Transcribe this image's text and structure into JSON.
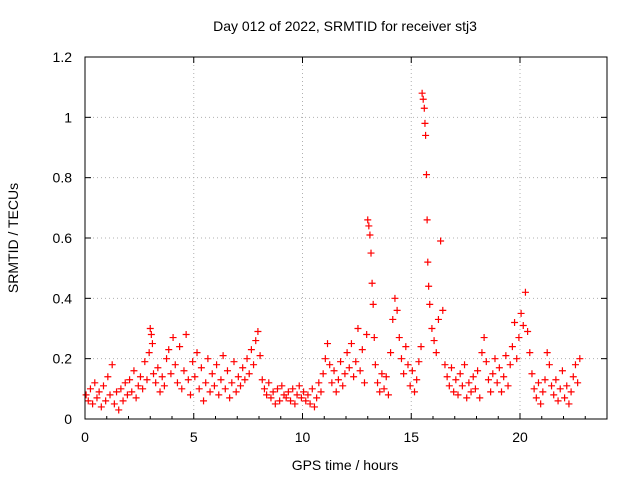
{
  "chart_data": {
    "type": "scatter",
    "title": "Day 012 of 2022, SRMTID for receiver stj3",
    "xlabel": "GPS time / hours",
    "ylabel": "SRMTID / TECUs",
    "xlim": [
      0,
      24
    ],
    "ylim": [
      0,
      1.2
    ],
    "xticks": [
      0,
      5,
      10,
      15,
      20
    ],
    "xtick_labels": [
      "0",
      "5",
      "10",
      "15",
      "20"
    ],
    "yticks": [
      0,
      0.2,
      0.4,
      0.6,
      0.8,
      1,
      1.2
    ],
    "ytick_labels": [
      "0",
      "0.2",
      "0.4",
      "0.6",
      "0.8",
      "1",
      "1.2"
    ],
    "grid": true,
    "marker": "+",
    "color": "#ff0000",
    "series": [
      {
        "name": "stj3",
        "points": [
          [
            0.05,
            0.08
          ],
          [
            0.15,
            0.06
          ],
          [
            0.25,
            0.1
          ],
          [
            0.35,
            0.05
          ],
          [
            0.45,
            0.12
          ],
          [
            0.55,
            0.07
          ],
          [
            0.65,
            0.09
          ],
          [
            0.75,
            0.04
          ],
          [
            0.85,
            0.11
          ],
          [
            0.95,
            0.06
          ],
          [
            1.05,
            0.14
          ],
          [
            1.15,
            0.08
          ],
          [
            1.25,
            0.18
          ],
          [
            1.35,
            0.05
          ],
          [
            1.45,
            0.09
          ],
          [
            1.55,
            0.03
          ],
          [
            1.65,
            0.1
          ],
          [
            1.75,
            0.06
          ],
          [
            1.85,
            0.12
          ],
          [
            1.95,
            0.08
          ],
          [
            2.05,
            0.13
          ],
          [
            2.15,
            0.09
          ],
          [
            2.25,
            0.16
          ],
          [
            2.35,
            0.07
          ],
          [
            2.45,
            0.11
          ],
          [
            2.55,
            0.14
          ],
          [
            2.65,
            0.1
          ],
          [
            2.75,
            0.19
          ],
          [
            2.85,
            0.13
          ],
          [
            2.95,
            0.22
          ],
          [
            3.0,
            0.3
          ],
          [
            3.05,
            0.28
          ],
          [
            3.1,
            0.25
          ],
          [
            3.15,
            0.15
          ],
          [
            3.25,
            0.12
          ],
          [
            3.35,
            0.17
          ],
          [
            3.45,
            0.09
          ],
          [
            3.55,
            0.14
          ],
          [
            3.65,
            0.11
          ],
          [
            3.75,
            0.2
          ],
          [
            3.85,
            0.23
          ],
          [
            3.95,
            0.15
          ],
          [
            4.05,
            0.27
          ],
          [
            4.15,
            0.18
          ],
          [
            4.25,
            0.12
          ],
          [
            4.35,
            0.24
          ],
          [
            4.45,
            0.1
          ],
          [
            4.55,
            0.16
          ],
          [
            4.65,
            0.28
          ],
          [
            4.75,
            0.13
          ],
          [
            4.85,
            0.08
          ],
          [
            4.95,
            0.19
          ],
          [
            5.05,
            0.14
          ],
          [
            5.15,
            0.22
          ],
          [
            5.25,
            0.1
          ],
          [
            5.35,
            0.17
          ],
          [
            5.45,
            0.06
          ],
          [
            5.55,
            0.12
          ],
          [
            5.65,
            0.2
          ],
          [
            5.75,
            0.09
          ],
          [
            5.85,
            0.15
          ],
          [
            5.95,
            0.11
          ],
          [
            6.05,
            0.18
          ],
          [
            6.15,
            0.08
          ],
          [
            6.25,
            0.13
          ],
          [
            6.35,
            0.21
          ],
          [
            6.45,
            0.1
          ],
          [
            6.55,
            0.16
          ],
          [
            6.65,
            0.07
          ],
          [
            6.75,
            0.12
          ],
          [
            6.85,
            0.19
          ],
          [
            6.95,
            0.09
          ],
          [
            7.05,
            0.14
          ],
          [
            7.15,
            0.11
          ],
          [
            7.25,
            0.17
          ],
          [
            7.35,
            0.13
          ],
          [
            7.45,
            0.2
          ],
          [
            7.55,
            0.15
          ],
          [
            7.65,
            0.23
          ],
          [
            7.75,
            0.18
          ],
          [
            7.85,
            0.26
          ],
          [
            7.95,
            0.29
          ],
          [
            8.05,
            0.21
          ],
          [
            8.15,
            0.13
          ],
          [
            8.25,
            0.1
          ],
          [
            8.35,
            0.08
          ],
          [
            8.45,
            0.12
          ],
          [
            8.55,
            0.07
          ],
          [
            8.65,
            0.09
          ],
          [
            8.75,
            0.05
          ],
          [
            8.85,
            0.1
          ],
          [
            8.95,
            0.06
          ],
          [
            9.05,
            0.11
          ],
          [
            9.15,
            0.08
          ],
          [
            9.25,
            0.07
          ],
          [
            9.35,
            0.09
          ],
          [
            9.45,
            0.06
          ],
          [
            9.55,
            0.1
          ],
          [
            9.65,
            0.05
          ],
          [
            9.75,
            0.08
          ],
          [
            9.85,
            0.11
          ],
          [
            9.95,
            0.07
          ],
          [
            10.05,
            0.09
          ],
          [
            10.15,
            0.06
          ],
          [
            10.25,
            0.08
          ],
          [
            10.35,
            0.05
          ],
          [
            10.45,
            0.1
          ],
          [
            10.55,
            0.04
          ],
          [
            10.65,
            0.07
          ],
          [
            10.75,
            0.12
          ],
          [
            10.85,
            0.09
          ],
          [
            10.95,
            0.15
          ],
          [
            11.05,
            0.2
          ],
          [
            11.15,
            0.25
          ],
          [
            11.25,
            0.18
          ],
          [
            11.35,
            0.12
          ],
          [
            11.45,
            0.16
          ],
          [
            11.55,
            0.09
          ],
          [
            11.65,
            0.13
          ],
          [
            11.75,
            0.19
          ],
          [
            11.85,
            0.11
          ],
          [
            11.95,
            0.15
          ],
          [
            12.05,
            0.22
          ],
          [
            12.15,
            0.17
          ],
          [
            12.25,
            0.25
          ],
          [
            12.35,
            0.14
          ],
          [
            12.45,
            0.19
          ],
          [
            12.55,
            0.3
          ],
          [
            12.65,
            0.16
          ],
          [
            12.75,
            0.23
          ],
          [
            12.85,
            0.12
          ],
          [
            12.95,
            0.28
          ],
          [
            13.0,
            0.66
          ],
          [
            13.05,
            0.64
          ],
          [
            13.1,
            0.61
          ],
          [
            13.15,
            0.55
          ],
          [
            13.2,
            0.45
          ],
          [
            13.25,
            0.38
          ],
          [
            13.3,
            0.27
          ],
          [
            13.35,
            0.18
          ],
          [
            13.45,
            0.12
          ],
          [
            13.55,
            0.09
          ],
          [
            13.65,
            0.15
          ],
          [
            13.75,
            0.1
          ],
          [
            13.85,
            0.14
          ],
          [
            13.95,
            0.08
          ],
          [
            14.05,
            0.22
          ],
          [
            14.15,
            0.33
          ],
          [
            14.25,
            0.4
          ],
          [
            14.35,
            0.36
          ],
          [
            14.45,
            0.27
          ],
          [
            14.55,
            0.2
          ],
          [
            14.65,
            0.15
          ],
          [
            14.75,
            0.24
          ],
          [
            14.85,
            0.18
          ],
          [
            14.95,
            0.11
          ],
          [
            15.05,
            0.16
          ],
          [
            15.15,
            0.09
          ],
          [
            15.25,
            0.13
          ],
          [
            15.35,
            0.19
          ],
          [
            15.45,
            0.24
          ],
          [
            15.5,
            1.08
          ],
          [
            15.55,
            1.06
          ],
          [
            15.6,
            1.03
          ],
          [
            15.63,
            0.98
          ],
          [
            15.66,
            0.94
          ],
          [
            15.7,
            0.81
          ],
          [
            15.73,
            0.66
          ],
          [
            15.76,
            0.52
          ],
          [
            15.8,
            0.44
          ],
          [
            15.85,
            0.38
          ],
          [
            15.95,
            0.3
          ],
          [
            16.05,
            0.26
          ],
          [
            16.15,
            0.22
          ],
          [
            16.25,
            0.33
          ],
          [
            16.35,
            0.59
          ],
          [
            16.45,
            0.36
          ],
          [
            16.55,
            0.18
          ],
          [
            16.65,
            0.14
          ],
          [
            16.75,
            0.11
          ],
          [
            16.85,
            0.17
          ],
          [
            16.95,
            0.09
          ],
          [
            17.05,
            0.13
          ],
          [
            17.15,
            0.08
          ],
          [
            17.25,
            0.15
          ],
          [
            17.35,
            0.11
          ],
          [
            17.45,
            0.18
          ],
          [
            17.55,
            0.07
          ],
          [
            17.65,
            0.12
          ],
          [
            17.75,
            0.09
          ],
          [
            17.85,
            0.14
          ],
          [
            17.95,
            0.1
          ],
          [
            18.05,
            0.16
          ],
          [
            18.15,
            0.07
          ],
          [
            18.25,
            0.22
          ],
          [
            18.35,
            0.27
          ],
          [
            18.45,
            0.19
          ],
          [
            18.55,
            0.13
          ],
          [
            18.65,
            0.09
          ],
          [
            18.75,
            0.15
          ],
          [
            18.85,
            0.2
          ],
          [
            18.95,
            0.12
          ],
          [
            19.05,
            0.17
          ],
          [
            19.15,
            0.09
          ],
          [
            19.25,
            0.14
          ],
          [
            19.35,
            0.21
          ],
          [
            19.45,
            0.11
          ],
          [
            19.55,
            0.18
          ],
          [
            19.65,
            0.24
          ],
          [
            19.75,
            0.32
          ],
          [
            19.85,
            0.2
          ],
          [
            19.95,
            0.27
          ],
          [
            20.05,
            0.35
          ],
          [
            20.15,
            0.31
          ],
          [
            20.25,
            0.42
          ],
          [
            20.35,
            0.29
          ],
          [
            20.45,
            0.22
          ],
          [
            20.55,
            0.15
          ],
          [
            20.65,
            0.1
          ],
          [
            20.75,
            0.07
          ],
          [
            20.85,
            0.12
          ],
          [
            20.95,
            0.05
          ],
          [
            21.05,
            0.09
          ],
          [
            21.15,
            0.13
          ],
          [
            21.25,
            0.22
          ],
          [
            21.35,
            0.18
          ],
          [
            21.45,
            0.11
          ],
          [
            21.55,
            0.08
          ],
          [
            21.65,
            0.13
          ],
          [
            21.75,
            0.06
          ],
          [
            21.85,
            0.1
          ],
          [
            21.95,
            0.16
          ],
          [
            22.05,
            0.07
          ],
          [
            22.15,
            0.11
          ],
          [
            22.25,
            0.05
          ],
          [
            22.35,
            0.09
          ],
          [
            22.45,
            0.14
          ],
          [
            22.55,
            0.18
          ],
          [
            22.65,
            0.12
          ],
          [
            22.75,
            0.2
          ]
        ]
      }
    ]
  }
}
